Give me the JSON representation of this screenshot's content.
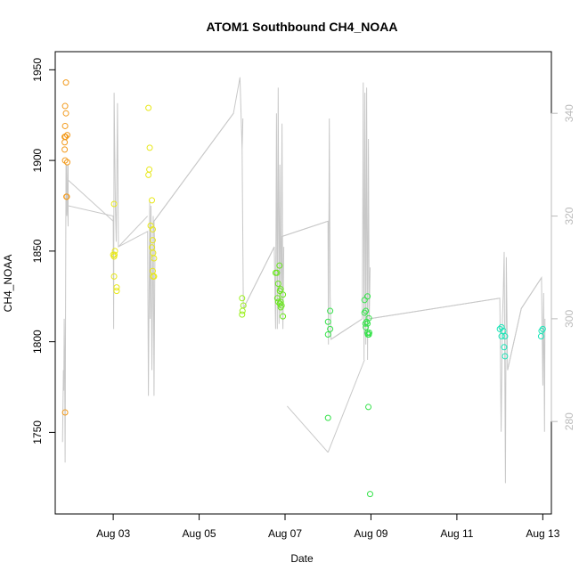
{
  "chart_data": {
    "type": "scatter",
    "title": "ATOM1 Southbound CH4_NOAA",
    "xlabel": "Date",
    "ylabel": "CH4_NOAA",
    "xlim_days": [
      1.65,
      13.2
    ],
    "ylim": [
      1705,
      1960
    ],
    "y2lim": [
      262,
      352
    ],
    "x_ticks": [
      {
        "label": "Aug 03",
        "day": 3
      },
      {
        "label": "Aug 05",
        "day": 5
      },
      {
        "label": "Aug 07",
        "day": 7
      },
      {
        "label": "Aug 09",
        "day": 9
      },
      {
        "label": "Aug 11",
        "day": 11
      },
      {
        "label": "Aug 13",
        "day": 13
      }
    ],
    "y_ticks": [
      1750,
      1800,
      1850,
      1900,
      1950
    ],
    "y2_ticks": [
      280,
      300,
      320,
      340
    ],
    "colors": {
      "line": "#c8c8c8",
      "axis": "#000000",
      "right_axis": "#bbbbbb"
    },
    "series": [
      {
        "color": "#f29a1c",
        "points": [
          [
            1.9,
            1943
          ],
          [
            1.88,
            1930
          ],
          [
            1.9,
            1926
          ],
          [
            1.88,
            1919
          ],
          [
            1.93,
            1914
          ],
          [
            1.87,
            1913
          ],
          [
            1.89,
            1913
          ],
          [
            1.87,
            1910
          ],
          [
            1.87,
            1906
          ],
          [
            1.88,
            1900
          ],
          [
            1.93,
            1899
          ],
          [
            1.91,
            1880
          ],
          [
            1.92,
            1880
          ],
          [
            1.88,
            1761
          ]
        ]
      },
      {
        "color": "#e8e81a",
        "points": [
          [
            3.02,
            1876
          ],
          [
            3.04,
            1850
          ],
          [
            3.0,
            1848
          ],
          [
            3.02,
            1847
          ],
          [
            3.03,
            1848
          ],
          [
            3.02,
            1836
          ],
          [
            3.08,
            1830
          ],
          [
            3.08,
            1828
          ],
          [
            3.82,
            1929
          ],
          [
            3.85,
            1907
          ],
          [
            3.84,
            1895
          ],
          [
            3.82,
            1892
          ],
          [
            3.9,
            1878
          ],
          [
            3.87,
            1864
          ],
          [
            3.92,
            1862
          ],
          [
            3.92,
            1856
          ],
          [
            3.9,
            1852
          ],
          [
            3.93,
            1849
          ],
          [
            3.95,
            1846
          ],
          [
            3.92,
            1839
          ],
          [
            3.95,
            1836
          ],
          [
            3.93,
            1836
          ]
        ]
      },
      {
        "color": "#9af01a",
        "points": [
          [
            6.0,
            1824
          ],
          [
            6.03,
            1820
          ],
          [
            6.01,
            1817
          ],
          [
            6.0,
            1815
          ]
        ]
      },
      {
        "color": "#6ae61e",
        "points": [
          [
            6.78,
            1838
          ],
          [
            6.81,
            1838
          ],
          [
            6.87,
            1842
          ],
          [
            6.84,
            1832
          ],
          [
            6.9,
            1829
          ],
          [
            6.88,
            1828
          ],
          [
            6.95,
            1826
          ],
          [
            6.82,
            1824
          ],
          [
            6.84,
            1822
          ],
          [
            6.9,
            1822
          ],
          [
            6.88,
            1821
          ],
          [
            6.92,
            1820
          ],
          [
            6.9,
            1819
          ],
          [
            6.95,
            1814
          ]
        ]
      },
      {
        "color": "#35e24a",
        "points": [
          [
            8.05,
            1817
          ],
          [
            8.0,
            1811
          ],
          [
            8.05,
            1807
          ],
          [
            8.0,
            1804
          ],
          [
            8.0,
            1758
          ],
          [
            8.85,
            1823
          ],
          [
            8.92,
            1825
          ],
          [
            8.88,
            1817
          ],
          [
            8.85,
            1816
          ],
          [
            8.95,
            1813
          ],
          [
            8.9,
            1811
          ],
          [
            8.87,
            1810
          ],
          [
            8.92,
            1810
          ],
          [
            8.88,
            1808
          ],
          [
            8.92,
            1805
          ],
          [
            8.96,
            1805
          ],
          [
            8.93,
            1804
          ],
          [
            8.95,
            1804
          ],
          [
            8.94,
            1764
          ],
          [
            8.98,
            1716
          ]
        ]
      },
      {
        "color": "#1ae6b8",
        "points": [
          [
            12.0,
            1807
          ],
          [
            12.04,
            1808
          ],
          [
            12.08,
            1806
          ],
          [
            12.04,
            1803
          ],
          [
            12.12,
            1803
          ],
          [
            12.1,
            1797
          ],
          [
            12.12,
            1792
          ],
          [
            12.97,
            1806
          ],
          [
            13.0,
            1807
          ],
          [
            12.96,
            1803
          ]
        ]
      }
    ],
    "secondary_line_y2": [
      [
        1.82,
        276
      ],
      [
        1.84,
        290
      ],
      [
        1.85,
        286
      ],
      [
        1.86,
        300
      ],
      [
        1.87,
        292
      ],
      [
        1.88,
        272
      ],
      [
        1.9,
        330
      ],
      [
        1.92,
        320
      ],
      [
        1.93,
        324
      ],
      [
        1.92,
        330
      ],
      [
        1.95,
        318
      ],
      [
        1.95,
        326
      ],
      [
        1.95,
        330
      ],
      [
        1.95,
        322
      ],
      [
        3.0,
        320
      ],
      [
        3.01,
        298
      ],
      [
        3.02,
        344
      ],
      [
        3.05,
        322
      ],
      [
        3.07,
        315
      ],
      [
        3.1,
        342
      ],
      [
        3.12,
        314
      ],
      [
        3.8,
        317
      ],
      [
        3.82,
        285
      ],
      [
        3.85,
        323
      ],
      [
        3.86,
        300
      ],
      [
        3.88,
        322
      ],
      [
        3.9,
        290
      ],
      [
        3.93,
        320
      ],
      [
        3.95,
        285
      ],
      [
        3.97,
        312
      ],
      [
        3.95,
        319
      ],
      [
        5.8,
        340
      ],
      [
        5.95,
        347
      ],
      [
        6.0,
        333
      ],
      [
        6.02,
        339
      ],
      [
        6.0,
        333
      ],
      [
        6.03,
        302
      ],
      [
        6.75,
        314
      ],
      [
        6.78,
        298
      ],
      [
        6.8,
        340
      ],
      [
        6.82,
        298
      ],
      [
        6.84,
        345
      ],
      [
        6.86,
        299
      ],
      [
        6.88,
        330
      ],
      [
        6.9,
        301
      ],
      [
        6.93,
        338
      ],
      [
        6.95,
        298
      ],
      [
        6.97,
        314
      ],
      [
        6.95,
        298
      ],
      [
        6.92,
        316
      ],
      [
        8.0,
        319
      ],
      [
        8.01,
        295
      ],
      [
        8.03,
        339
      ],
      [
        8.05,
        305
      ],
      [
        8.07,
        296
      ],
      [
        8.8,
        300
      ],
      [
        8.82,
        346
      ],
      [
        8.84,
        292
      ],
      [
        8.86,
        344
      ],
      [
        8.88,
        295
      ],
      [
        8.9,
        345
      ],
      [
        8.92,
        292
      ],
      [
        8.94,
        335
      ],
      [
        8.96,
        300
      ],
      [
        8.98,
        310
      ],
      [
        8.96,
        300
      ],
      [
        12.0,
        304
      ],
      [
        12.03,
        278
      ],
      [
        12.06,
        300
      ],
      [
        12.08,
        305
      ],
      [
        12.1,
        313
      ],
      [
        12.13,
        268
      ],
      [
        12.15,
        312
      ],
      [
        12.18,
        290
      ],
      [
        12.5,
        302
      ],
      [
        12.97,
        308
      ],
      [
        13.0,
        287
      ],
      [
        13.02,
        305
      ],
      [
        13.04,
        278
      ],
      [
        13.05,
        300
      ]
    ],
    "connectors_y2": [
      [
        [
          1.95,
          327
        ],
        [
          3.0,
          319
        ]
      ],
      [
        [
          3.12,
          314
        ],
        [
          3.8,
          320
        ]
      ],
      [
        [
          3.95,
          319
        ],
        [
          5.8,
          340
        ]
      ],
      [
        [
          6.03,
          302
        ],
        [
          6.75,
          314
        ]
      ],
      [
        [
          6.92,
          316
        ],
        [
          8.0,
          319
        ]
      ],
      [
        [
          8.07,
          296
        ],
        [
          8.8,
          300
        ]
      ],
      [
        [
          8.96,
          300
        ],
        [
          12.0,
          304
        ]
      ],
      [
        [
          12.18,
          290
        ],
        [
          12.5,
          302
        ]
      ],
      [
        [
          12.5,
          302
        ],
        [
          12.97,
          308
        ]
      ],
      [
        [
          7.05,
          283
        ],
        [
          8.0,
          274
        ]
      ],
      [
        [
          8.0,
          274
        ],
        [
          8.85,
          292
        ]
      ]
    ]
  }
}
